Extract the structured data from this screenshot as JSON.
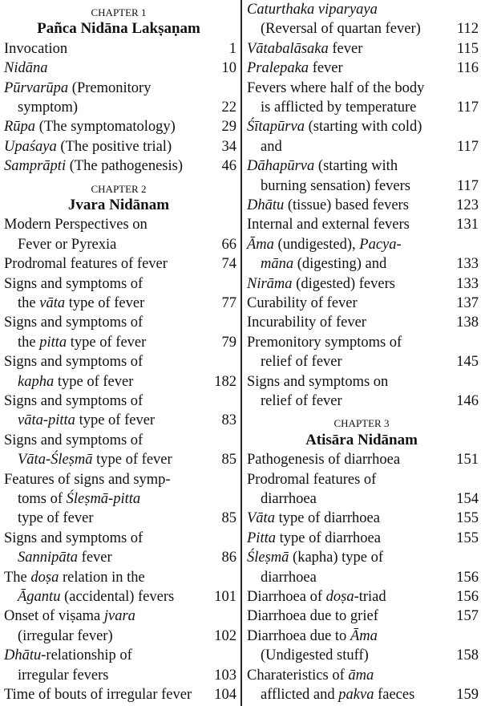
{
  "columns": [
    {
      "items": [
        {
          "chapter": "CHAPTER 1",
          "title": "Pañca Nidāna Lakṣaṇam"
        },
        {
          "lines": [
            [
              "Invocation"
            ]
          ],
          "page": 1
        },
        {
          "lines": [
            [
              {
                "text": "Nidāna",
                "italic": true
              }
            ]
          ],
          "page": 10
        },
        {
          "lines": [
            [
              {
                "text": "Pūrvarūpa",
                "italic": true
              },
              " (Premonitory"
            ],
            [
              "symptom)"
            ]
          ],
          "page": 22
        },
        {
          "lines": [
            [
              {
                "text": "Rūpa",
                "italic": true
              },
              " (The symptomatology)"
            ]
          ],
          "page": 29
        },
        {
          "lines": [
            [
              {
                "text": "Upaśaya",
                "italic": true
              },
              " (The positive trial)"
            ]
          ],
          "page": 34
        },
        {
          "lines": [
            [
              {
                "text": "Samprāpti",
                "italic": true
              },
              " (The pathogenesis)"
            ]
          ],
          "page": 46
        },
        {
          "chapter": "CHAPTER 2",
          "title": "Jvara Nidānam"
        },
        {
          "lines": [
            [
              "Modern Perspectives on"
            ],
            [
              "Fever or Pyrexia"
            ]
          ],
          "page": 66
        },
        {
          "lines": [
            [
              "Prodromal features of fever"
            ]
          ],
          "page": 74
        },
        {
          "lines": [
            [
              "Signs and symptoms of"
            ],
            [
              "the ",
              {
                "text": "vāta",
                "italic": true
              },
              " type of fever"
            ]
          ],
          "page": 77
        },
        {
          "lines": [
            [
              "Signs and symptoms of"
            ],
            [
              "the ",
              {
                "text": "pitta",
                "italic": true
              },
              " type of fever"
            ]
          ],
          "page": 79
        },
        {
          "lines": [
            [
              "Signs and symptoms of"
            ],
            [
              {
                "text": "kapha",
                "italic": true
              },
              " type of fever"
            ]
          ],
          "page": 182
        },
        {
          "lines": [
            [
              "Signs and symptoms of"
            ],
            [
              {
                "text": "vāta-pitta",
                "italic": true
              },
              " type of fever"
            ]
          ],
          "page": 83
        },
        {
          "lines": [
            [
              "Signs and symptoms of"
            ],
            [
              {
                "text": "Vāta-Śleṣmā",
                "italic": true
              },
              " type of fever"
            ]
          ],
          "page": 85
        },
        {
          "lines": [
            [
              "Features of signs and symp-"
            ],
            [
              "toms of ",
              {
                "text": "Śleṣmā-pitta",
                "italic": true
              }
            ],
            [
              "type of fever"
            ]
          ],
          "page": 85
        },
        {
          "lines": [
            [
              "Signs and symptoms of"
            ],
            [
              {
                "text": "Sannipāta",
                "italic": true
              },
              " fever"
            ]
          ],
          "page": 86
        },
        {
          "lines": [
            [
              "The ",
              {
                "text": "doṣa",
                "italic": true
              },
              " relation in the"
            ],
            [
              {
                "text": "Āgantu",
                "italic": true
              },
              " (accidental) fevers"
            ]
          ],
          "page": 101
        },
        {
          "lines": [
            [
              "Onset of viṣama ",
              {
                "text": "jvara",
                "italic": true
              }
            ],
            [
              "(irregular fever)"
            ]
          ],
          "page": 102
        },
        {
          "lines": [
            [
              {
                "text": "Dhātu",
                "italic": true
              },
              "-relationship of"
            ],
            [
              "irregular fevers"
            ]
          ],
          "page": 103
        },
        {
          "lines": [
            [
              "Time of bouts of irregular fever"
            ]
          ],
          "page": 104
        }
      ]
    },
    {
      "items": [
        {
          "lines": [
            [
              {
                "text": "Caturthaka viparyaya",
                "italic": true
              }
            ],
            [
              "(Reversal of quartan fever)"
            ]
          ],
          "page": 112
        },
        {
          "lines": [
            [
              {
                "text": "Vātabalāsaka",
                "italic": true
              },
              " fever"
            ]
          ],
          "page": 115
        },
        {
          "lines": [
            [
              {
                "text": "Pralepaka",
                "italic": true
              },
              " fever"
            ]
          ],
          "page": 116
        },
        {
          "lines": [
            [
              "Fevers where half of the body"
            ],
            [
              "is afflicted by temperature"
            ]
          ],
          "page": 117
        },
        {
          "lines": [
            [
              {
                "text": "Śītapūrva",
                "italic": true
              },
              " (starting with cold)"
            ],
            [
              "and"
            ]
          ],
          "page": 117
        },
        {
          "lines": [
            [
              {
                "text": "Dāhapūrva",
                "italic": true
              },
              " (starting with"
            ],
            [
              "burning sensation) fevers"
            ]
          ],
          "page": 117
        },
        {
          "lines": [
            [
              {
                "text": "Dhātu",
                "italic": true
              },
              " (tissue) based fevers"
            ]
          ],
          "page": 123
        },
        {
          "lines": [
            [
              "Internal and external fevers"
            ]
          ],
          "page": 131
        },
        {
          "lines": [
            [
              {
                "text": "Āma",
                "italic": true
              },
              " (undigested), ",
              {
                "text": "Pacya-",
                "italic": true
              }
            ],
            [
              {
                "text": "māna",
                "italic": true
              },
              " (digesting) and"
            ]
          ],
          "page": 133
        },
        {
          "lines": [
            [
              {
                "text": "Nirāma",
                "italic": true
              },
              " (digested) fevers"
            ]
          ],
          "page": 133
        },
        {
          "lines": [
            [
              "Curability of fever"
            ]
          ],
          "page": 137
        },
        {
          "lines": [
            [
              "Incurability of fever"
            ]
          ],
          "page": 138
        },
        {
          "lines": [
            [
              "Premonitory symptoms of"
            ],
            [
              "relief of fever"
            ]
          ],
          "page": 145
        },
        {
          "lines": [
            [
              "Signs and symptoms on"
            ],
            [
              "relief of fever"
            ]
          ],
          "page": 146
        },
        {
          "chapter": "CHAPTER 3",
          "title": "Atisāra Nidānam"
        },
        {
          "lines": [
            [
              "Pathogenesis of diarrhoea"
            ]
          ],
          "page": 151
        },
        {
          "lines": [
            [
              "Prodromal features of"
            ],
            [
              "diarrhoea"
            ]
          ],
          "page": 154
        },
        {
          "lines": [
            [
              {
                "text": "Vāta",
                "italic": true
              },
              " type of diarrhoea"
            ]
          ],
          "page": 155
        },
        {
          "lines": [
            [
              {
                "text": "Pitta",
                "italic": true
              },
              " type of diarrhoea"
            ]
          ],
          "page": 155
        },
        {
          "lines": [
            [
              {
                "text": "Śleṣmā",
                "italic": true
              },
              " (kapha) type of"
            ],
            [
              "diarrhoea"
            ]
          ],
          "page": 156
        },
        {
          "lines": [
            [
              "Diarrhoea of ",
              {
                "text": "doṣa",
                "italic": true
              },
              "-triad"
            ]
          ],
          "page": 156
        },
        {
          "lines": [
            [
              "Diarrhoea due to grief"
            ]
          ],
          "page": 157
        },
        {
          "lines": [
            [
              "Diarrhoea due to ",
              {
                "text": "Āma",
                "italic": true
              }
            ],
            [
              "(Undigested stuff)"
            ]
          ],
          "page": 158
        },
        {
          "lines": [
            [
              "Charateristics of ",
              {
                "text": "āma",
                "italic": true
              }
            ],
            [
              "afflicted and ",
              {
                "text": "pakva",
                "italic": true
              },
              " faeces"
            ]
          ],
          "page": 159
        }
      ]
    }
  ]
}
